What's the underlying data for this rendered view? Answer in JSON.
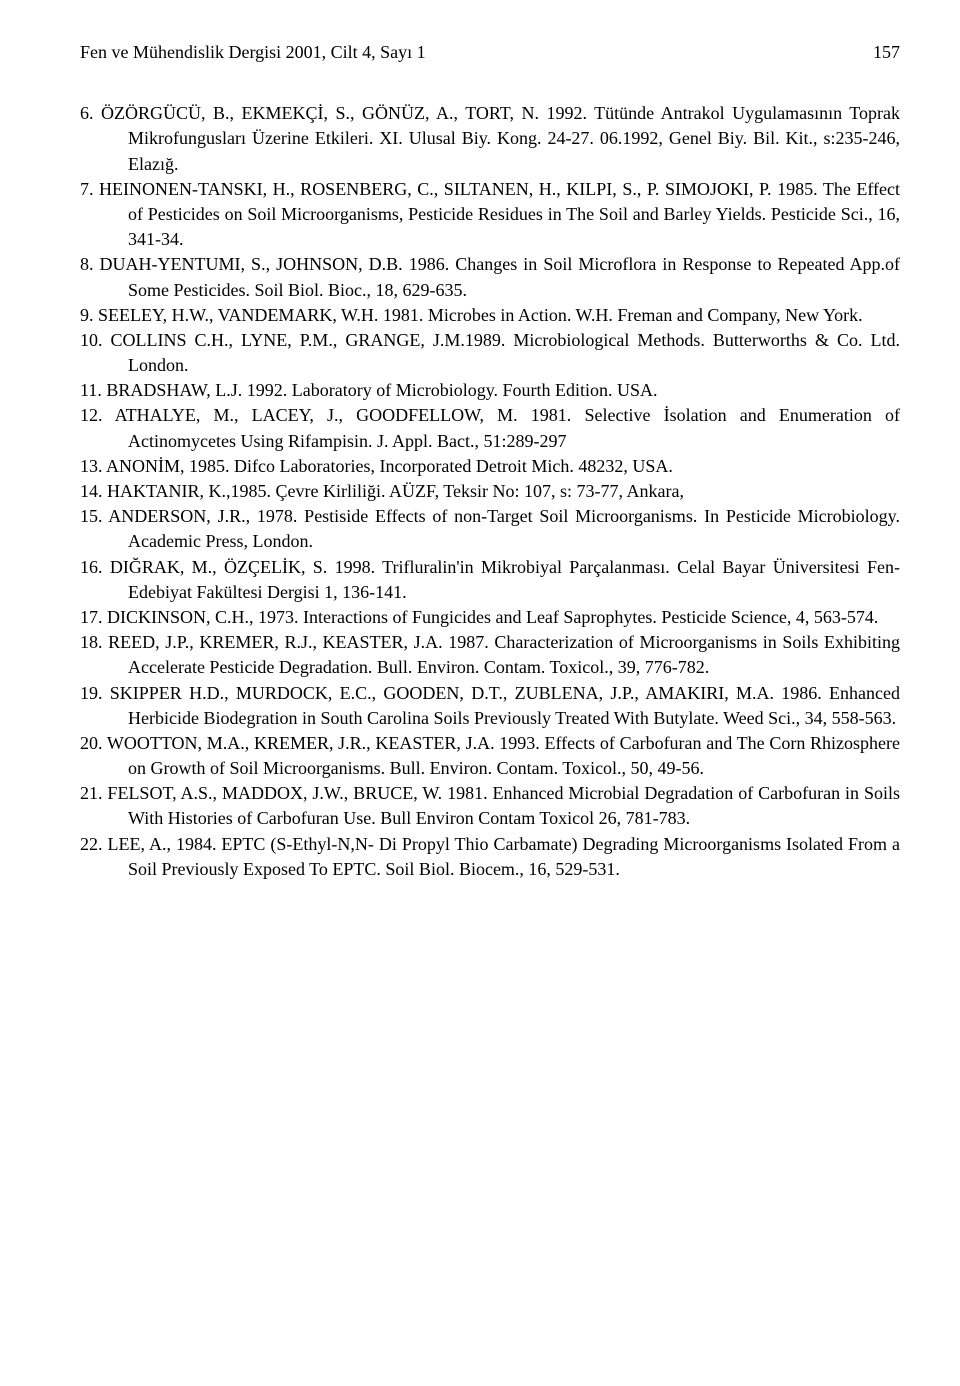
{
  "header": {
    "journal": "Fen ve Mühendislik Dergisi 2001, Cilt 4, Sayı 1",
    "page": "157"
  },
  "references": [
    "6. ÖZÖRGÜCÜ, B., EKMEKÇİ, S., GÖNÜZ, A., TORT, N. 1992. Tütünde Antrakol Uygulamasının Toprak Mikrofungusları Üzerine Etkileri. XI. Ulusal Biy. Kong. 24-27. 06.1992, Genel Biy. Bil. Kit., s:235-246, Elazığ.",
    "7. HEINONEN-TANSKI, H., ROSENBERG, C., SILTANEN, H., KILPI, S., P. SIMOJOKI, P. 1985. The Effect of Pesticides on Soil Microorganisms, Pesticide Residues in The Soil and Barley Yields. Pesticide Sci., 16, 341-34.",
    "8. DUAH-YENTUMI, S., JOHNSON, D.B. 1986. Changes in Soil Microflora in Response to Repeated App.of Some Pesticides. Soil Biol. Bioc., 18, 629-635.",
    "9. SEELEY, H.W., VANDEMARK, W.H. 1981. Microbes in Action. W.H. Freman and Company, New York.",
    "10. COLLINS C.H., LYNE, P.M., GRANGE, J.M.1989. Microbiological Methods. Butterworths & Co. Ltd. London.",
    "11. BRADSHAW, L.J. 1992. Laboratory of Microbiology. Fourth Edition. USA.",
    "12. ATHALYE, M., LACEY, J., GOODFELLOW, M. 1981. Selective İsolation and Enumeration of Actinomycetes Using Rifampisin. J. Appl. Bact., 51:289-297",
    "13. ANONİM, 1985. Difco Laboratories, Incorporated Detroit Mich. 48232, USA.",
    "14. HAKTANIR, K.,1985. Çevre Kirliliği. AÜZF, Teksir No: 107, s: 73-77, Ankara,",
    "15. ANDERSON, J.R., 1978. Pestiside Effects of non-Target Soil Microorganisms. In Pesticide Microbiology. Academic Press, London.",
    "16. DIĞRAK, M., ÖZÇELİK, S. 1998. Trifluralin'in Mikrobiyal Parçalanması. Celal Bayar Üniversitesi Fen-Edebiyat Fakültesi Dergisi 1, 136-141.",
    "17. DICKINSON, C.H., 1973. Interactions of Fungicides and Leaf Saprophytes. Pesticide Science, 4, 563-574.",
    "18. REED, J.P., KREMER, R.J., KEASTER, J.A. 1987. Characterization of Microorganisms in Soils Exhibiting Accelerate Pesticide Degradation. Bull. Environ. Contam. Toxicol., 39, 776-782.",
    "19. SKIPPER H.D., MURDOCK, E.C., GOODEN, D.T., ZUBLENA, J.P., AMAKIRI, M.A. 1986. Enhanced Herbicide Biodegration in South Carolina Soils Previously Treated With Butylate. Weed Sci., 34, 558-563.",
    "20. WOOTTON, M.A., KREMER, J.R., KEASTER, J.A. 1993. Effects of Carbofuran and The Corn Rhizosphere on Growth of Soil Microorganisms. Bull. Environ. Contam. Toxicol., 50, 49-56.",
    "21. FELSOT, A.S., MADDOX, J.W., BRUCE, W. 1981. Enhanced Microbial Degradation of Carbofuran in Soils With Histories of Carbofuran Use. Bull Environ Contam Toxicol 26, 781-783.",
    "22. LEE, A., 1984. EPTC (S-Ethyl-N,N- Di Propyl Thio Carbamate) Degrading Microorganisms Isolated From a Soil Previously Exposed To EPTC. Soil Biol. Biocem., 16, 529-531."
  ]
}
